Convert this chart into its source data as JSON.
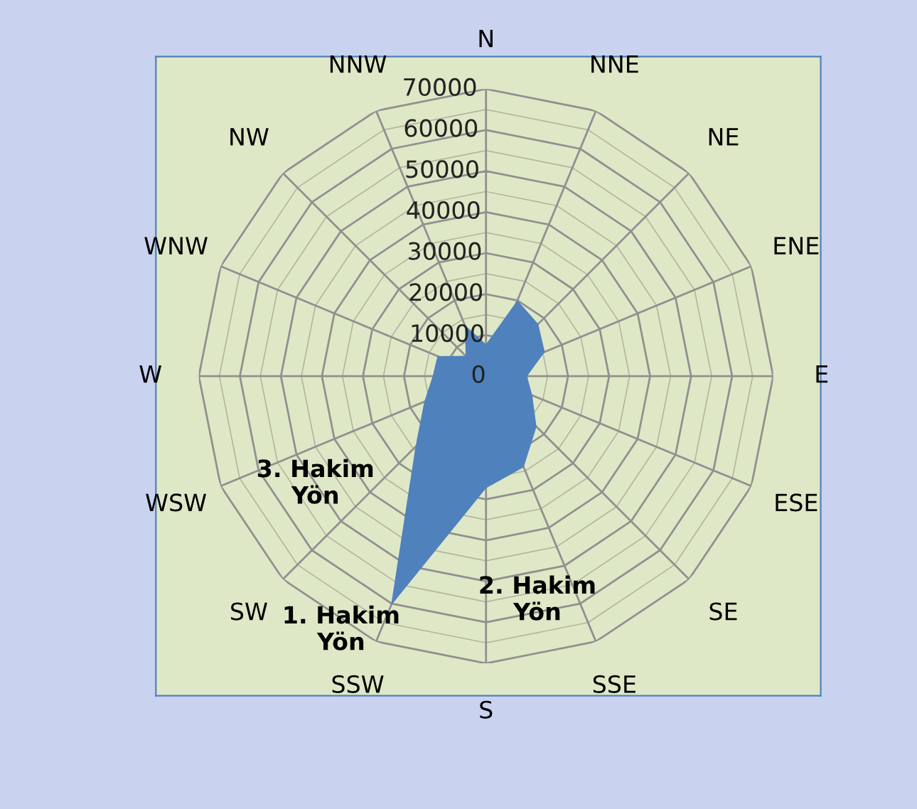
{
  "chart_data": {
    "type": "radar",
    "categories": [
      "N",
      "NNE",
      "NE",
      "ENE",
      "E",
      "ESE",
      "SE",
      "SSE",
      "S",
      "SSW",
      "SW",
      "WSW",
      "W",
      "WNW",
      "NW",
      "NNW"
    ],
    "series": [
      {
        "color": "#4f81bd",
        "type": "area",
        "values": [
          7800,
          20000,
          18000,
          15500,
          10000,
          12200,
          17400,
          24000,
          27300,
          60500,
          24300,
          16300,
          13000,
          12800,
          7000,
          13500
        ]
      }
    ],
    "ylim": [
      0,
      70000
    ],
    "yticks": [
      0,
      10000,
      20000,
      30000,
      40000,
      50000,
      60000,
      70000
    ],
    "grid": true,
    "annotations": [
      "1. Hakim\nYön",
      "2. Hakim\nYön",
      "3. Hakim\nYön"
    ]
  }
}
